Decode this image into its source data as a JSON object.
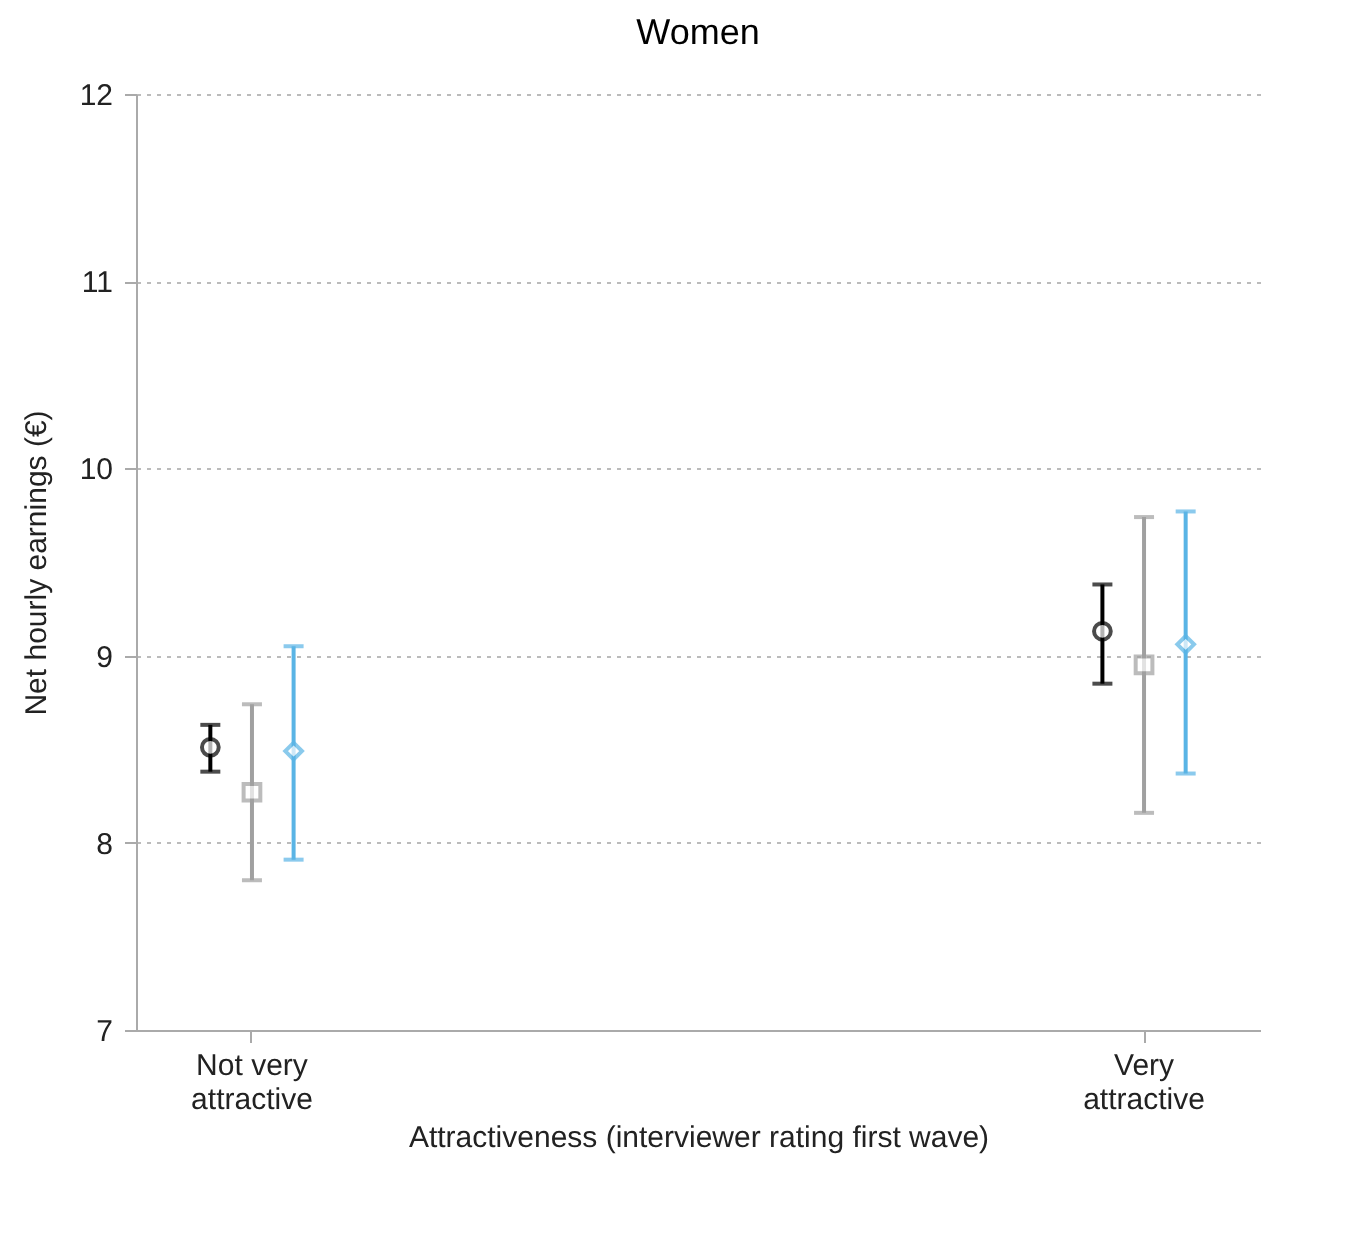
{
  "chart_data": {
    "type": "scatter",
    "title": "Women",
    "xlabel": "Attractiveness (interviewer rating first wave)",
    "ylabel": "Net hourly earnings (€)",
    "categories": [
      "Not very attractive",
      "Very attractive"
    ],
    "series": [
      {
        "color": "#000000",
        "marker": "circle",
        "values": [
          8.51,
          9.13
        ],
        "errors": [
          [
            8.38,
            8.63
          ],
          [
            8.85,
            9.38
          ]
        ]
      },
      {
        "color": "#a0a0a0",
        "marker": "square",
        "values": [
          8.27,
          8.95
        ],
        "errors": [
          [
            7.8,
            8.74
          ],
          [
            8.16,
            9.74
          ]
        ]
      },
      {
        "color": "#5ab4e5",
        "marker": "diamond",
        "values": [
          8.49,
          9.06
        ],
        "errors": [
          [
            7.91,
            9.05
          ],
          [
            8.37,
            9.77
          ]
        ]
      }
    ],
    "ylim": [
      7,
      12
    ],
    "yticks": [
      7,
      8,
      9,
      10,
      11,
      12
    ],
    "grid": "y",
    "legend": false
  }
}
